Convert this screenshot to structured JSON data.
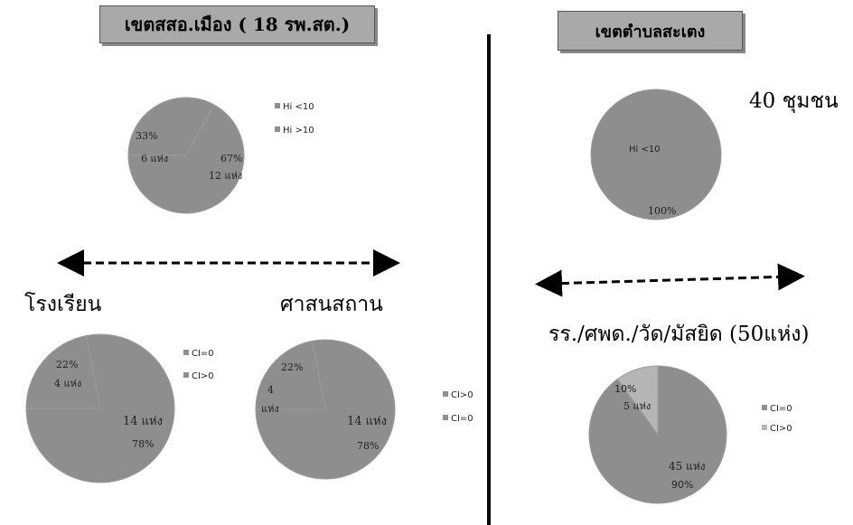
{
  "header": {
    "left_title": "เขตสสอ.เมือง ( 18 รพ.สต.)",
    "right_title": "เขตตำบลสะเตง",
    "right_community": "40 ชุมชน"
  },
  "section_labels": {
    "school": "โรงเรียน",
    "religious": "ศาสนสถาน",
    "combined": "รร./ศพด./วัด/มัสยิด (50แห่ง)"
  },
  "colors": {
    "primary_slice": "#8e8e8e",
    "light_slice": "#b5b5b5",
    "slice_border": "#9a9a9a",
    "title_box": "#a9a9a9"
  },
  "chart_data": [
    {
      "type": "pie",
      "id": "hi-18-rpst",
      "legend": [
        "Hi <10",
        "Hi >10"
      ],
      "slices": [
        {
          "name": "Hi <10",
          "value": 33,
          "pct_label": "33%",
          "count_label": "6 แห่ง"
        },
        {
          "name": "Hi >10",
          "value": 67,
          "pct_label": "67%",
          "count_label": "12 แห่ง"
        }
      ]
    },
    {
      "type": "pie",
      "id": "ci-school",
      "legend": [
        "CI=0",
        "CI>0"
      ],
      "slices": [
        {
          "name": "CI=0",
          "value": 22,
          "pct_label": "22%",
          "count_label": "4 แห่ง"
        },
        {
          "name": "CI>0",
          "value": 78,
          "pct_label": "78%",
          "count_label": "14 แห่ง"
        }
      ]
    },
    {
      "type": "pie",
      "id": "ci-religious",
      "legend": [
        "CI>0",
        "CI=0"
      ],
      "slices": [
        {
          "name": "CI>0",
          "value": 22,
          "pct_label": "22%",
          "count_label": "4",
          "count_label_2": "แห่ง"
        },
        {
          "name": "CI=0",
          "value": 78,
          "pct_label": "78%",
          "count_label": "14 แห่ง"
        }
      ]
    },
    {
      "type": "pie",
      "id": "hi-community",
      "legend": [],
      "slices": [
        {
          "name": "Hi <10",
          "value": 100,
          "pct_label": "100%",
          "inner_label": "Hi <10"
        }
      ]
    },
    {
      "type": "pie",
      "id": "ci-combined",
      "legend": [
        "CI=0",
        "CI>0"
      ],
      "slices": [
        {
          "name": "CI=0",
          "value": 90,
          "pct_label": "90%",
          "count_label": "45 แห่ง"
        },
        {
          "name": "CI>0",
          "value": 10,
          "pct_label": "10%",
          "count_label": "5 แห่ง"
        }
      ]
    }
  ]
}
